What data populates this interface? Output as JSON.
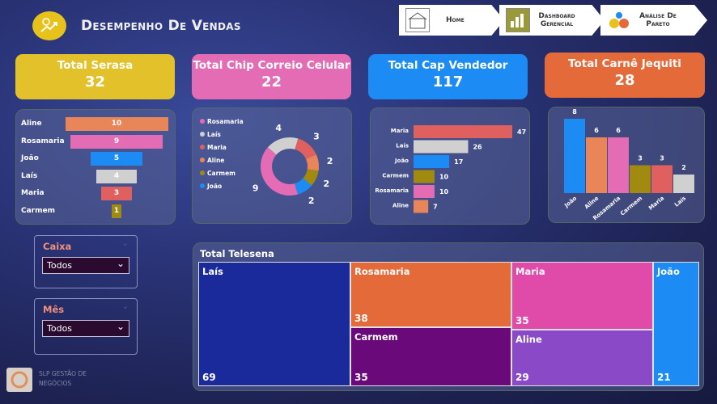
{
  "header": {
    "title": "Desempenho De Vendas"
  },
  "nav": [
    {
      "label": "Home",
      "icon": "house-icon"
    },
    {
      "label": "Dashboard Gerencial",
      "icon": "dashboard-icon"
    },
    {
      "label": "Análise De Pareto",
      "icon": "pareto-icon"
    }
  ],
  "kpis": [
    {
      "title": "Total Serasa",
      "value": "32",
      "color": "#e2c12a"
    },
    {
      "title": "Total Chip Correio Celular",
      "value": "22",
      "color": "#e46cb4"
    },
    {
      "title": "Total Cap Vendedor",
      "value": "117",
      "color": "#1c8cf4"
    },
    {
      "title": "Total Carnê Jequiti",
      "value": "28",
      "color": "#e46a3a"
    }
  ],
  "funnel": {
    "categories": [
      "Aline",
      "Rosamaria",
      "João",
      "Laís",
      "Maria",
      "Carmem"
    ],
    "values": [
      10,
      9,
      5,
      4,
      3,
      1
    ],
    "colors": [
      "#e8865a",
      "#e46cb4",
      "#1c8cf4",
      "#d0d0d0",
      "#e06060",
      "#a08a10"
    ]
  },
  "donut": {
    "legend": [
      "Rosamaria",
      "Laís",
      "Maria",
      "Aline",
      "Carmem",
      "João"
    ],
    "colors": [
      "#e46cb4",
      "#d0d0d0",
      "#e06060",
      "#e8865a",
      "#a08a10",
      "#1c8cf4"
    ],
    "values": [
      9,
      4,
      3,
      2,
      2,
      2
    ]
  },
  "hbar": {
    "categories": [
      "Maria",
      "Laís",
      "João",
      "Carmem",
      "Rosamaria",
      "Aline"
    ],
    "values": [
      47,
      26,
      17,
      10,
      10,
      7
    ],
    "colors": [
      "#e06060",
      "#d0d0d0",
      "#1c8cf4",
      "#a08a10",
      "#e46cb4",
      "#e8865a"
    ]
  },
  "vbar": {
    "categories": [
      "João",
      "Aline",
      "Rosamaria",
      "Carmem",
      "Maria",
      "Laís"
    ],
    "values": [
      8,
      6,
      6,
      3,
      3,
      2
    ],
    "colors": [
      "#1c8cf4",
      "#e8865a",
      "#e46cb4",
      "#a08a10",
      "#e06060",
      "#d0d0d0"
    ]
  },
  "filters": [
    {
      "title": "Caixa",
      "value": "Todos"
    },
    {
      "title": "Mês",
      "value": "Todos"
    }
  ],
  "treemap": {
    "title": "Total Telesena",
    "items": [
      {
        "name": "Laís",
        "value": "69",
        "color": "#1a2a9a"
      },
      {
        "name": "Rosamaria",
        "value": "38",
        "color": "#e46a3a"
      },
      {
        "name": "Carmem",
        "value": "35",
        "color": "#6a0a7a"
      },
      {
        "name": "Maria",
        "value": "35",
        "color": "#e04aa8"
      },
      {
        "name": "Aline",
        "value": "29",
        "color": "#8a4ac8"
      },
      {
        "name": "João",
        "value": "21",
        "color": "#1c8cf4"
      }
    ]
  },
  "footer": {
    "company": "SLP GESTÃO DE NEGÓCIOS"
  }
}
